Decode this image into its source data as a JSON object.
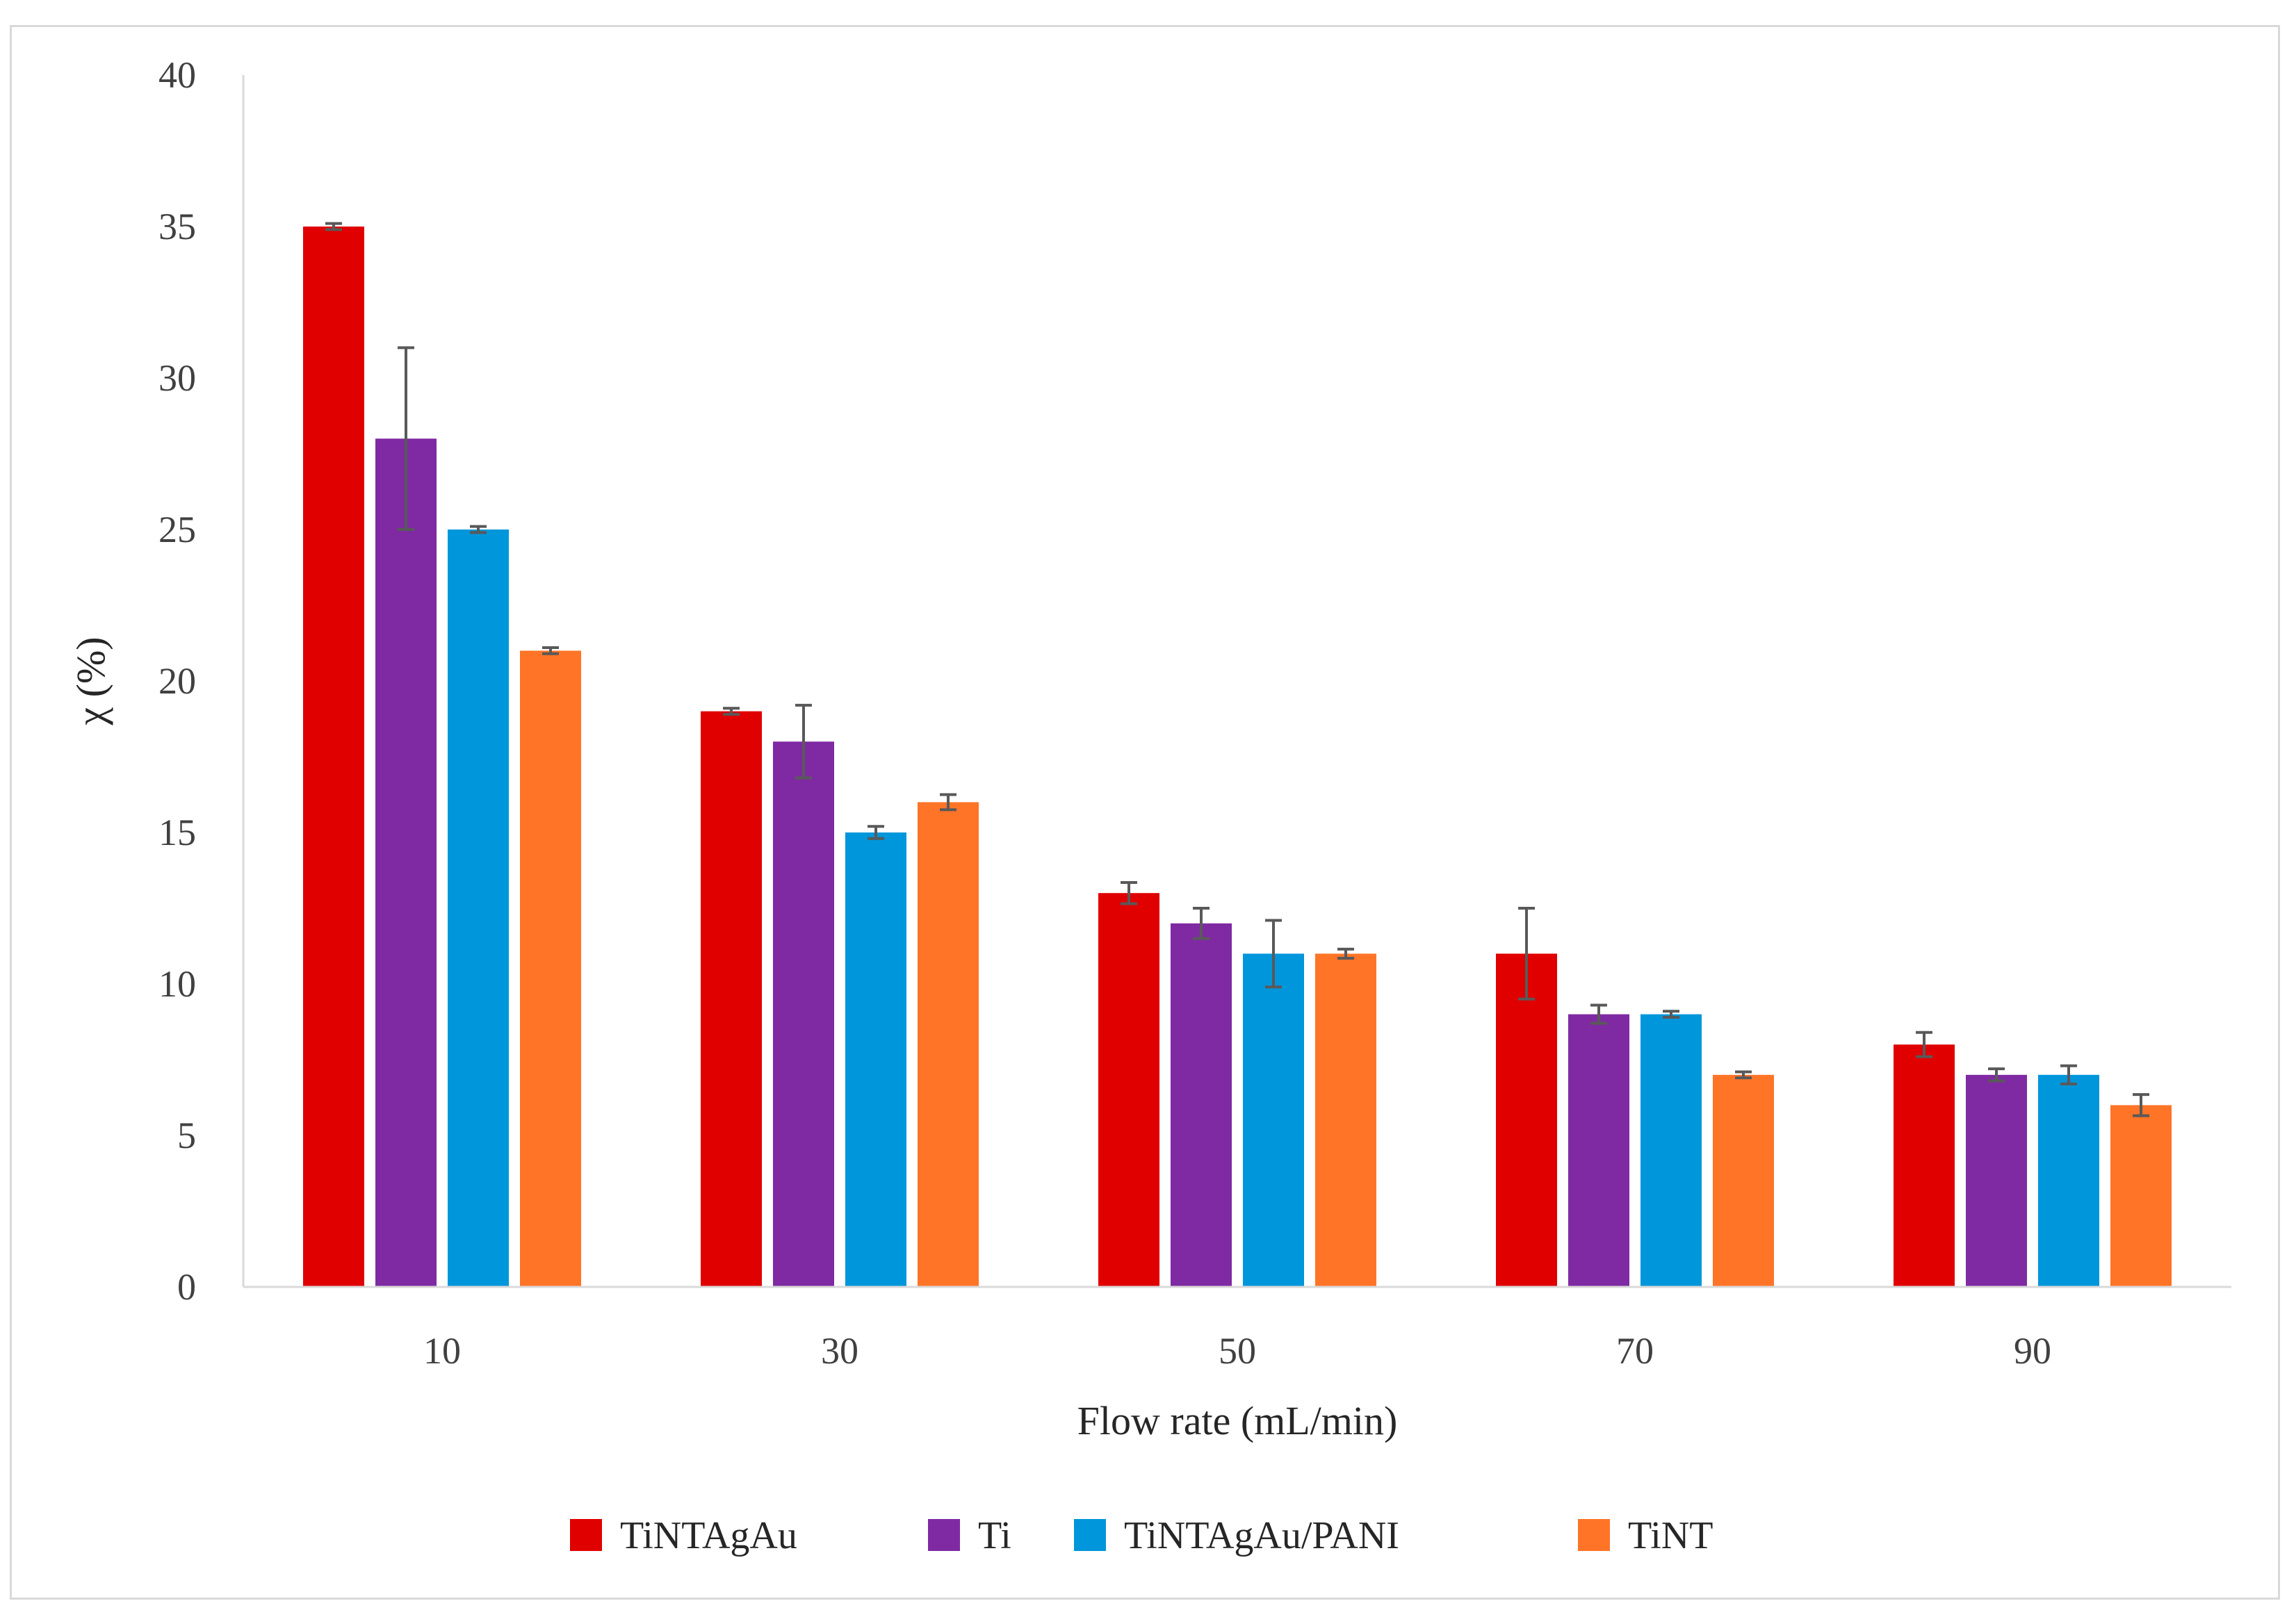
{
  "chart_data": {
    "type": "bar",
    "title": "",
    "xlabel": "Flow rate (mL/min)",
    "ylabel": "χ (%)",
    "categories": [
      "10",
      "30",
      "50",
      "70",
      "90"
    ],
    "ylim": [
      0,
      40
    ],
    "yticks": [
      0,
      5,
      10,
      15,
      20,
      25,
      30,
      35,
      40
    ],
    "ytick_labels": [
      "0",
      "5",
      "10",
      "15",
      "20",
      "25",
      "30",
      "35",
      "40"
    ],
    "grid": false,
    "legend_position": "bottom",
    "error_bar_color": "#595959",
    "series": [
      {
        "name": "TiNTAgAu",
        "color": "#e00000",
        "values": [
          35,
          19,
          13,
          11,
          8
        ],
        "errors": [
          0.1,
          0.1,
          0.35,
          1.5,
          0.4
        ]
      },
      {
        "name": "Ti",
        "color": "#7f2aa3",
        "values": [
          28,
          18,
          12,
          9,
          7
        ],
        "errors": [
          3,
          1.2,
          0.5,
          0.3,
          0.2
        ]
      },
      {
        "name": "TiNTAgAu/PANI",
        "color": "#0096db",
        "values": [
          25,
          15,
          11,
          9,
          7
        ],
        "errors": [
          0.1,
          0.2,
          1.1,
          0.1,
          0.3
        ]
      },
      {
        "name": "TiNT",
        "color": "#ff7427",
        "values": [
          21,
          16,
          11,
          7,
          6
        ],
        "errors": [
          0.1,
          0.25,
          0.15,
          0.1,
          0.35
        ]
      }
    ]
  }
}
